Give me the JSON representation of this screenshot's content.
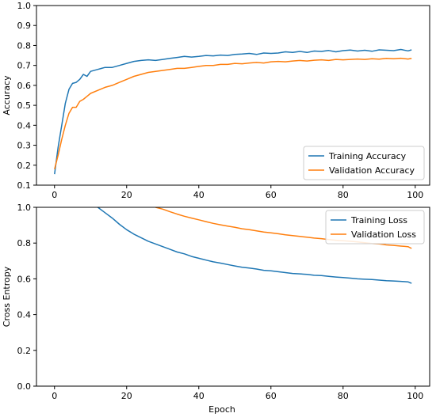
{
  "chart_data": [
    {
      "type": "line",
      "title": "",
      "xlabel": "",
      "ylabel": "Accuracy",
      "xlim": [
        -5,
        104
      ],
      "ylim": [
        0.1,
        1.0
      ],
      "xticks": [
        0,
        20,
        40,
        60,
        80,
        100
      ],
      "yticks": [
        0.1,
        0.2,
        0.3,
        0.4,
        0.5,
        0.6,
        0.7,
        0.8,
        0.9,
        1.0
      ],
      "xtick_labels": [
        "0",
        "20",
        "40",
        "60",
        "80",
        "100"
      ],
      "ytick_labels": [
        "0.1",
        "0.2",
        "0.3",
        "0.4",
        "0.5",
        "0.6",
        "0.7",
        "0.8",
        "0.9",
        "1.0"
      ],
      "grid": false,
      "legend_position": "lower-right",
      "series": [
        {
          "name": "Training Accuracy",
          "color": "#1f77b4",
          "x": [
            0,
            1,
            2,
            3,
            4,
            5,
            6,
            7,
            8,
            9,
            10,
            12,
            14,
            16,
            18,
            20,
            22,
            24,
            26,
            28,
            30,
            32,
            34,
            36,
            38,
            40,
            42,
            44,
            46,
            48,
            50,
            52,
            54,
            56,
            58,
            60,
            62,
            64,
            66,
            68,
            70,
            72,
            74,
            76,
            78,
            80,
            82,
            84,
            86,
            88,
            90,
            92,
            94,
            96,
            98,
            99
          ],
          "values": [
            0.155,
            0.29,
            0.4,
            0.51,
            0.58,
            0.61,
            0.615,
            0.63,
            0.655,
            0.645,
            0.67,
            0.68,
            0.69,
            0.69,
            0.7,
            0.71,
            0.72,
            0.725,
            0.728,
            0.725,
            0.73,
            0.735,
            0.74,
            0.745,
            0.742,
            0.745,
            0.75,
            0.748,
            0.752,
            0.75,
            0.755,
            0.757,
            0.76,
            0.755,
            0.762,
            0.76,
            0.762,
            0.768,
            0.765,
            0.77,
            0.765,
            0.772,
            0.77,
            0.775,
            0.768,
            0.774,
            0.777,
            0.772,
            0.776,
            0.771,
            0.778,
            0.776,
            0.774,
            0.78,
            0.773,
            0.778
          ]
        },
        {
          "name": "Validation Accuracy",
          "color": "#ff7f0e",
          "x": [
            0,
            1,
            2,
            3,
            4,
            5,
            6,
            7,
            8,
            9,
            10,
            12,
            14,
            16,
            18,
            20,
            22,
            24,
            26,
            28,
            30,
            32,
            34,
            36,
            38,
            40,
            42,
            44,
            46,
            48,
            50,
            52,
            54,
            56,
            58,
            60,
            62,
            64,
            66,
            68,
            70,
            72,
            74,
            76,
            78,
            80,
            82,
            84,
            86,
            88,
            90,
            92,
            94,
            96,
            98,
            99
          ],
          "values": [
            0.18,
            0.25,
            0.33,
            0.4,
            0.46,
            0.49,
            0.49,
            0.52,
            0.53,
            0.545,
            0.56,
            0.575,
            0.59,
            0.6,
            0.615,
            0.63,
            0.645,
            0.655,
            0.665,
            0.67,
            0.675,
            0.68,
            0.685,
            0.685,
            0.69,
            0.695,
            0.7,
            0.7,
            0.705,
            0.705,
            0.71,
            0.708,
            0.712,
            0.715,
            0.712,
            0.718,
            0.72,
            0.718,
            0.722,
            0.725,
            0.722,
            0.726,
            0.728,
            0.725,
            0.73,
            0.728,
            0.73,
            0.732,
            0.73,
            0.733,
            0.731,
            0.735,
            0.733,
            0.736,
            0.732,
            0.735
          ]
        }
      ]
    },
    {
      "type": "line",
      "title": "",
      "xlabel": "Epoch",
      "ylabel": "Cross Entropy",
      "xlim": [
        -5,
        104
      ],
      "ylim": [
        0.0,
        1.0
      ],
      "xticks": [
        0,
        20,
        40,
        60,
        80,
        100
      ],
      "yticks": [
        0.0,
        0.2,
        0.4,
        0.6,
        0.8,
        1.0
      ],
      "xtick_labels": [
        "0",
        "20",
        "40",
        "60",
        "80",
        "100"
      ],
      "ytick_labels": [
        "0.0",
        "0.2",
        "0.4",
        "0.6",
        "0.8",
        "1.0"
      ],
      "grid": false,
      "legend_position": "top-right",
      "series": [
        {
          "name": "Training Loss",
          "color": "#1f77b4",
          "x": [
            12,
            14,
            16,
            18,
            20,
            22,
            24,
            26,
            28,
            30,
            32,
            34,
            36,
            38,
            40,
            42,
            44,
            46,
            48,
            50,
            52,
            54,
            56,
            58,
            60,
            62,
            64,
            66,
            68,
            70,
            72,
            74,
            76,
            78,
            80,
            82,
            84,
            86,
            88,
            90,
            92,
            94,
            96,
            98,
            99
          ],
          "values": [
            1.0,
            0.97,
            0.94,
            0.905,
            0.875,
            0.85,
            0.83,
            0.81,
            0.795,
            0.78,
            0.765,
            0.75,
            0.74,
            0.725,
            0.715,
            0.705,
            0.695,
            0.688,
            0.68,
            0.672,
            0.665,
            0.66,
            0.655,
            0.648,
            0.645,
            0.64,
            0.635,
            0.63,
            0.628,
            0.625,
            0.62,
            0.618,
            0.614,
            0.61,
            0.607,
            0.604,
            0.6,
            0.598,
            0.596,
            0.593,
            0.59,
            0.588,
            0.586,
            0.583,
            0.575
          ]
        },
        {
          "name": "Validation Loss",
          "color": "#ff7f0e",
          "x": [
            28,
            30,
            32,
            34,
            36,
            38,
            40,
            42,
            44,
            46,
            48,
            50,
            52,
            54,
            56,
            58,
            60,
            62,
            64,
            66,
            68,
            70,
            72,
            74,
            76,
            78,
            80,
            82,
            84,
            86,
            88,
            90,
            92,
            94,
            96,
            98,
            99
          ],
          "values": [
            1.0,
            0.99,
            0.975,
            0.962,
            0.95,
            0.94,
            0.93,
            0.92,
            0.91,
            0.902,
            0.895,
            0.888,
            0.88,
            0.875,
            0.868,
            0.862,
            0.857,
            0.852,
            0.846,
            0.842,
            0.837,
            0.833,
            0.828,
            0.825,
            0.82,
            0.816,
            0.813,
            0.81,
            0.806,
            0.802,
            0.798,
            0.795,
            0.79,
            0.787,
            0.783,
            0.78,
            0.77
          ]
        }
      ]
    }
  ]
}
